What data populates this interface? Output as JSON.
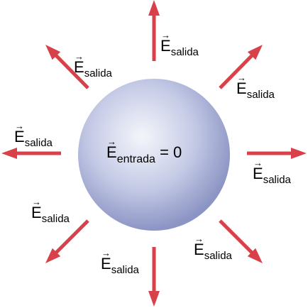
{
  "colors": {
    "arrow": "#d9414a",
    "sphere_light": "#f4f6fb",
    "sphere_mid": "#c5cbe6",
    "sphere_dark": "#8c94c4"
  },
  "field_symbol": "E",
  "vector_mark": "→",
  "outside_subscript": "salida",
  "inside": {
    "subscript": "entrada",
    "relation": "= 0"
  }
}
